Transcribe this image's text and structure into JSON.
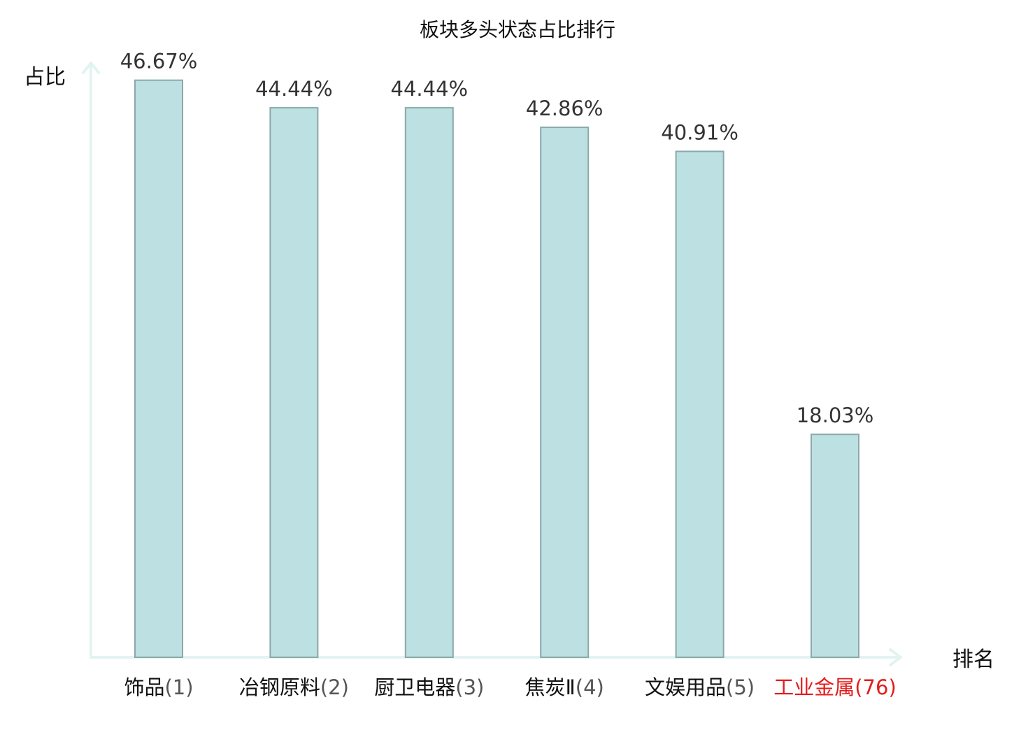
{
  "chart_data": {
    "type": "bar",
    "title": "板块多头状态占比排行",
    "ylabel": "占比",
    "xlabel": "排名",
    "ylim": [
      0,
      47.5
    ],
    "grid": false,
    "legend": "none",
    "categories": [
      {
        "name": "饰品",
        "rank": "(1)",
        "highlight": false
      },
      {
        "name": "冶钢原料",
        "rank": "(2)",
        "highlight": false
      },
      {
        "name": "厨卫电器",
        "rank": "(3)",
        "highlight": false
      },
      {
        "name": "焦炭Ⅱ",
        "rank": "(4)",
        "highlight": false
      },
      {
        "name": "文娱用品",
        "rank": "(5)",
        "highlight": false
      },
      {
        "name": "工业金属",
        "rank": "(76)",
        "highlight": true
      }
    ],
    "values": [
      46.67,
      44.44,
      44.44,
      42.86,
      40.91,
      18.03
    ],
    "value_labels": [
      "46.67%",
      "44.44%",
      "44.44%",
      "42.86%",
      "40.91%",
      "18.03%"
    ],
    "colors": {
      "bar_fill": "#bde0e2",
      "bar_stroke": "#8aa9a9",
      "axis": "#e3f3f1",
      "text": "#333333",
      "label_text": "#111111",
      "rank_text": "#555555",
      "highlight": "#e31d1d"
    }
  }
}
